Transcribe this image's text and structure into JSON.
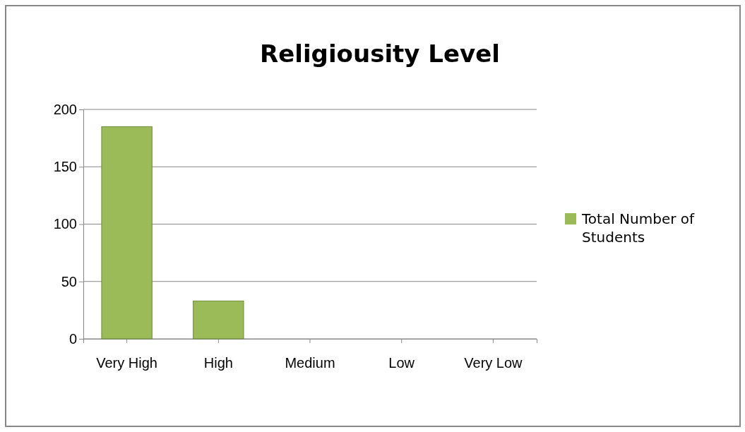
{
  "chart_data": {
    "type": "bar",
    "title": "Religiousity Level",
    "categories": [
      "Very High",
      "High",
      "Medium",
      "Low",
      "Very Low"
    ],
    "series": [
      {
        "name": "Total Number of Students",
        "color": "#9bbb59",
        "values": [
          185,
          33,
          0,
          0,
          0
        ]
      }
    ],
    "ylim": [
      0,
      200
    ],
    "yticks": [
      0,
      50,
      100,
      150,
      200
    ],
    "grid": "y",
    "legend": "right"
  }
}
